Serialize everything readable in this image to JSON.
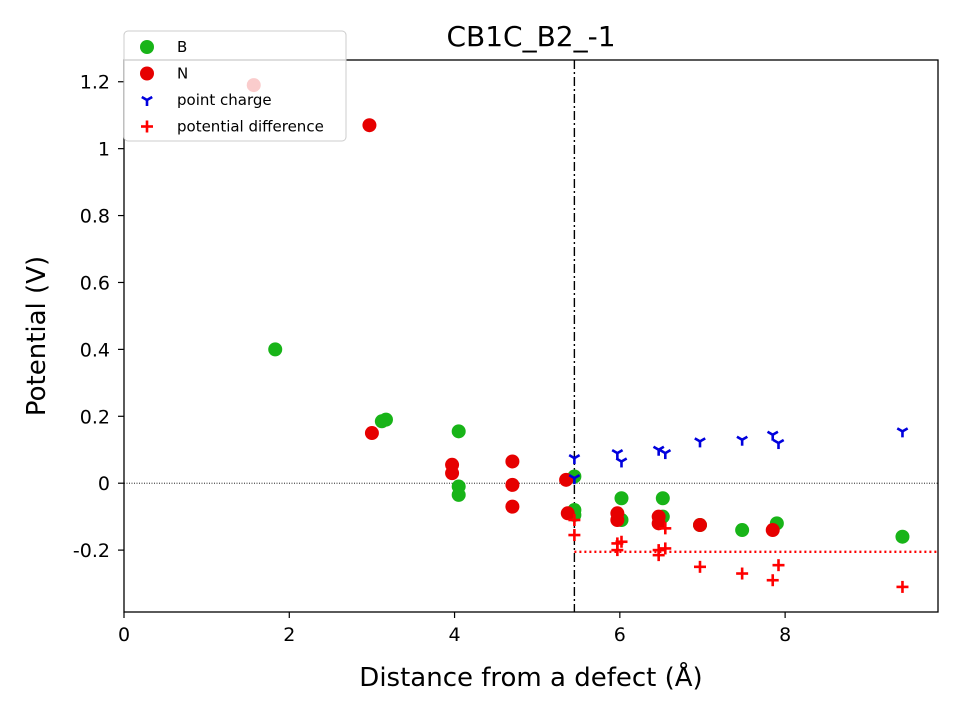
{
  "chart_data": {
    "type": "scatter",
    "title": "CB1C_B2_-1",
    "xlabel": "Distance from a defect (Å)",
    "ylabel": "Potential (V)",
    "xlim": [
      0,
      9.85
    ],
    "ylim": [
      -0.385,
      1.265
    ],
    "xticks": [
      0,
      2,
      4,
      6,
      8
    ],
    "xtick_labels": [
      "0",
      "2",
      "4",
      "6",
      "8"
    ],
    "yticks": [
      -0.2,
      0,
      0.2,
      0.4,
      0.6,
      0.8,
      1,
      1.2
    ],
    "ytick_labels": [
      "-0.2",
      "0",
      "0.2",
      "0.4",
      "0.6",
      "0.8",
      "1",
      "1.2"
    ],
    "legend_position": "upper-left",
    "grid": false,
    "vline_x": 5.45,
    "hline_zero": 0,
    "avg_potential_difference": -0.205,
    "avg_line_xrange": [
      5.45,
      9.85
    ],
    "series": [
      {
        "name": "B",
        "marker": "circle",
        "color": "#18b418",
        "points": [
          [
            1.83,
            0.4
          ],
          [
            3.12,
            0.185
          ],
          [
            3.17,
            0.19
          ],
          [
            4.05,
            0.155
          ],
          [
            4.05,
            -0.01
          ],
          [
            4.05,
            -0.035
          ],
          [
            5.45,
            0.02
          ],
          [
            5.45,
            -0.08
          ],
          [
            5.45,
            -0.095
          ],
          [
            6.02,
            -0.045
          ],
          [
            6.02,
            -0.11
          ],
          [
            6.52,
            -0.045
          ],
          [
            6.52,
            -0.1
          ],
          [
            6.97,
            -0.125
          ],
          [
            7.48,
            -0.14
          ],
          [
            7.9,
            -0.12
          ],
          [
            9.42,
            -0.16
          ]
        ]
      },
      {
        "name": "N",
        "marker": "circle",
        "color": "#e60000",
        "points": [
          [
            1.57,
            1.19
          ],
          [
            2.97,
            1.07
          ],
          [
            3.0,
            0.15
          ],
          [
            3.97,
            0.055
          ],
          [
            3.97,
            0.03
          ],
          [
            4.7,
            0.065
          ],
          [
            4.7,
            -0.005
          ],
          [
            4.7,
            -0.07
          ],
          [
            5.35,
            0.01
          ],
          [
            5.37,
            -0.09
          ],
          [
            5.97,
            -0.09
          ],
          [
            5.97,
            -0.11
          ],
          [
            6.47,
            -0.1
          ],
          [
            6.47,
            -0.12
          ],
          [
            6.97,
            -0.125
          ],
          [
            7.85,
            -0.14
          ]
        ]
      },
      {
        "name": "point charge",
        "marker": "tri_down",
        "color": "#0000dd",
        "points": [
          [
            5.45,
            0.075
          ],
          [
            5.45,
            0.015
          ],
          [
            5.97,
            0.09
          ],
          [
            6.02,
            0.065
          ],
          [
            6.47,
            0.1
          ],
          [
            6.55,
            0.09
          ],
          [
            6.97,
            0.125
          ],
          [
            7.48,
            0.13
          ],
          [
            7.85,
            0.145
          ],
          [
            7.92,
            0.12
          ],
          [
            9.42,
            0.155
          ]
        ]
      },
      {
        "name": "potential difference",
        "marker": "plus",
        "color": "#ff0000",
        "points": [
          [
            5.45,
            -0.11
          ],
          [
            5.45,
            -0.155
          ],
          [
            5.97,
            -0.18
          ],
          [
            5.97,
            -0.2
          ],
          [
            6.02,
            -0.175
          ],
          [
            6.47,
            -0.2
          ],
          [
            6.47,
            -0.215
          ],
          [
            6.55,
            -0.195
          ],
          [
            6.55,
            -0.135
          ],
          [
            6.97,
            -0.25
          ],
          [
            7.48,
            -0.27
          ],
          [
            7.85,
            -0.29
          ],
          [
            7.92,
            -0.245
          ],
          [
            9.42,
            -0.31
          ]
        ]
      }
    ]
  }
}
